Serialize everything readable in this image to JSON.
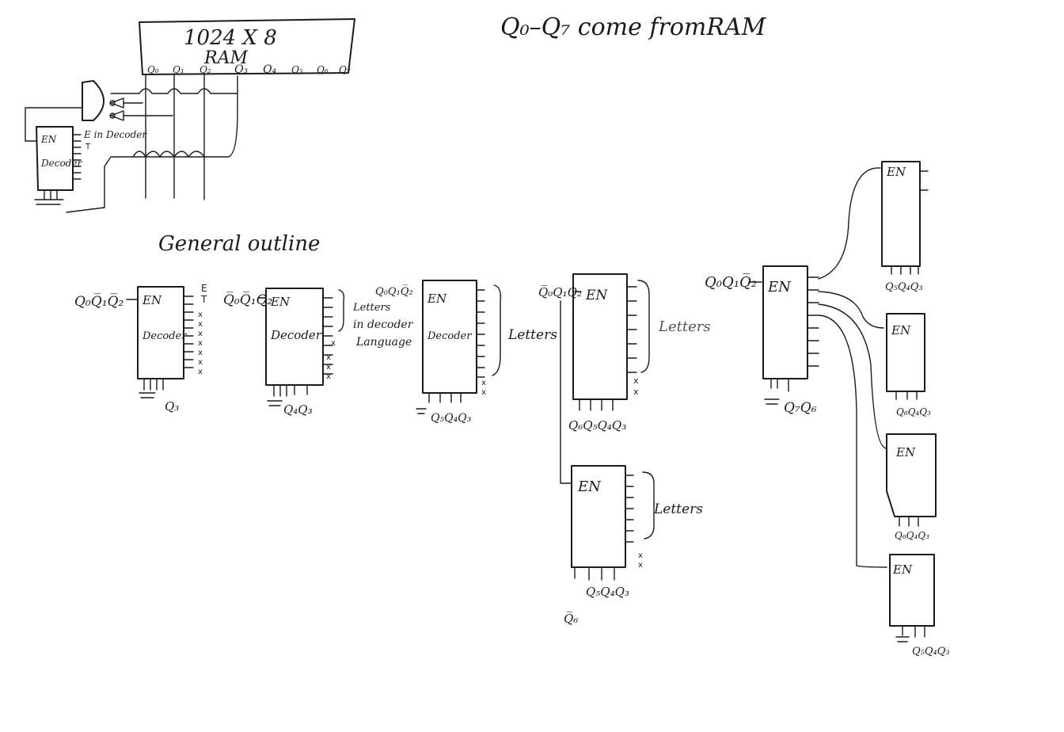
{
  "header": {
    "note": "Q₀–Q₇ come fromRAM",
    "ram_size": "1024 X 8",
    "ram_label": "RAM"
  },
  "ram_pins": [
    "Q₀",
    "Q₁",
    "Q₂",
    "Q₃",
    "Q₄",
    "Q₅",
    "Q₆",
    "Q₇"
  ],
  "top_decoder": {
    "en": "EN",
    "label": "Decoder",
    "side_note": "E in Decoder",
    "side_mark": "T"
  },
  "outline_title": "General outline",
  "decoders": [
    {
      "inputs": "Q₀Q̅₁Q̅₂",
      "en": "EN",
      "label": "Decoder",
      "et": "E",
      "et2": "T",
      "bottom": "Q₃"
    },
    {
      "inputs": "Q̅₀Q̅₁Q₂",
      "en": "EN",
      "label": "Decoder",
      "bottom": "Q₄Q₃",
      "note_lines": [
        "Letters",
        "in decoder",
        "Language"
      ]
    },
    {
      "inputs": "Q₀Q₁Q̅₂",
      "en": "EN",
      "label": "Decoder",
      "bottom": "Q₅Q₄Q₃",
      "note": "Letters"
    },
    {
      "inputs": "Q̅₀Q₁Q₂",
      "en": "EN",
      "bottom": "Q₆Q₅Q₄Q₃",
      "note": "Letters"
    },
    {
      "en": "EN",
      "bottom": "Q₅Q₄Q₃",
      "bottom_left": "Q̅₆",
      "note": "Letters"
    },
    {
      "inputs": "Q₀Q₁Q̅₂",
      "en": "EN",
      "bottom": "Q₇Q₆"
    },
    {
      "en": "EN",
      "bottom": "Q₅Q₄Q₃"
    },
    {
      "en": "EN",
      "bottom": "Q₆Q₄Q₃"
    },
    {
      "en": "EN",
      "bottom": "Q₆Q₄Q₃"
    },
    {
      "en": "EN",
      "bottom": "Q₅Q₄Q₃"
    }
  ],
  "x_mark": "x"
}
